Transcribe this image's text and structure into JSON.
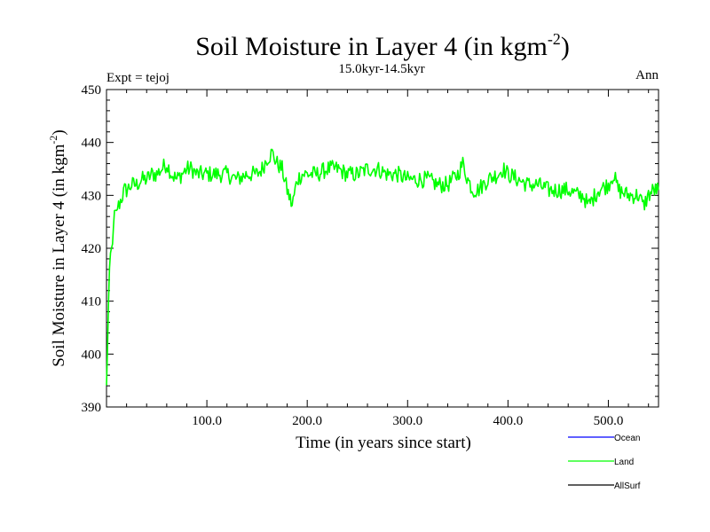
{
  "chart_data": {
    "type": "line",
    "title": "Soil Moisture in Layer 4 (in kgm",
    "title_superscript": "-2",
    "title_close": ")",
    "subtitle": "15.0kyr-14.5kyr",
    "left_label": "Expt = tejoj",
    "right_label": "Ann",
    "xlabel": "Time (in years since start)",
    "ylabel": "Soil Moisture in Layer 4 (in kgm",
    "ylabel_superscript": "-2",
    "ylabel_close": ")",
    "xlim": [
      0,
      550
    ],
    "ylim": [
      390,
      450
    ],
    "x_ticks": [
      100,
      200,
      300,
      400,
      500
    ],
    "x_tick_labels": [
      "100.0",
      "200.0",
      "300.0",
      "400.0",
      "500.0"
    ],
    "y_ticks": [
      390,
      400,
      410,
      420,
      430,
      440,
      450
    ],
    "y_tick_labels": [
      "390",
      "400",
      "410",
      "420",
      "430",
      "440",
      "450"
    ],
    "legend": [
      {
        "name": "Ocean",
        "color": "#0000ff"
      },
      {
        "name": "Land",
        "color": "#00ff00"
      },
      {
        "name": "AllSurf",
        "color": "#000000"
      }
    ],
    "series": [
      {
        "name": "Land",
        "color": "#00ff00",
        "x": [
          0,
          1,
          2,
          3,
          4,
          5,
          6,
          7,
          8,
          10,
          12,
          14,
          16,
          18,
          20,
          25,
          30,
          35,
          40,
          45,
          50,
          55,
          60,
          65,
          70,
          75,
          80,
          85,
          90,
          95,
          100,
          110,
          120,
          130,
          140,
          150,
          155,
          160,
          165,
          170,
          175,
          180,
          185,
          190,
          195,
          200,
          210,
          220,
          230,
          240,
          250,
          260,
          270,
          280,
          290,
          300,
          310,
          320,
          330,
          340,
          350,
          355,
          360,
          365,
          370,
          380,
          390,
          395,
          400,
          410,
          420,
          430,
          440,
          450,
          460,
          470,
          475,
          480,
          490,
          500,
          505,
          510,
          520,
          530,
          535,
          540,
          545,
          550
        ],
        "values": [
          394,
          401,
          410,
          416,
          419,
          420,
          421,
          424,
          427,
          427,
          428,
          429,
          430,
          431,
          431,
          432,
          432,
          433,
          433,
          434,
          434,
          435,
          436,
          434,
          433,
          434,
          435,
          435,
          434,
          434,
          434,
          434,
          434,
          433,
          434,
          434,
          435,
          437,
          438,
          436,
          435,
          431,
          428,
          433,
          434,
          434,
          434,
          435,
          435,
          434,
          434,
          435,
          435,
          434,
          434,
          433,
          433,
          433,
          432,
          432,
          434,
          436,
          433,
          431,
          431,
          433,
          434,
          435,
          434,
          433,
          432,
          432,
          431,
          431,
          431,
          430,
          430,
          428,
          431,
          432,
          434,
          431,
          430,
          430,
          428,
          430,
          431,
          431
        ]
      }
    ]
  }
}
